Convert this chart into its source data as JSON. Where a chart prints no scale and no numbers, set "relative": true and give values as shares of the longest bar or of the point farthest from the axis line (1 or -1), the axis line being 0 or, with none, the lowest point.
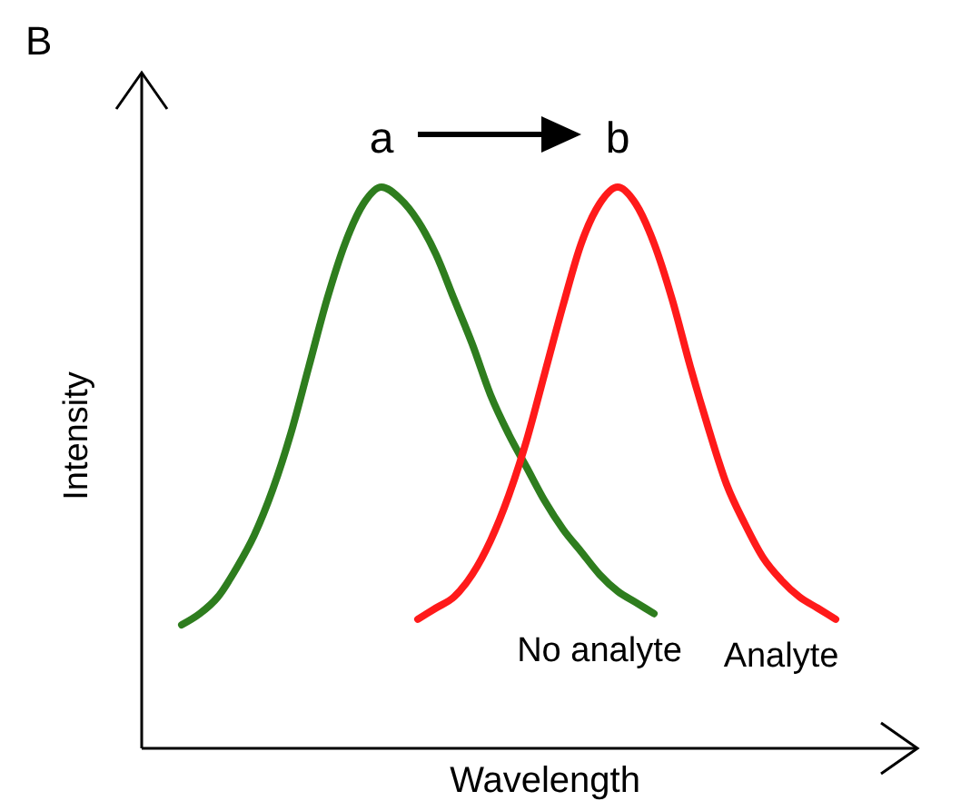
{
  "chart_data": {
    "type": "line",
    "title": "B",
    "xlabel": "Wavelength",
    "ylabel": "Intensity",
    "relative": true,
    "line_style": "solid",
    "categories": [
      null,
      null,
      null,
      null,
      null,
      null,
      null,
      null,
      null,
      null,
      null,
      null,
      null,
      null,
      null,
      null,
      null,
      null,
      null,
      null,
      null,
      null,
      null,
      null,
      null,
      null,
      null,
      null,
      null,
      null,
      null,
      null,
      null,
      null,
      null,
      null,
      null
    ],
    "series": [
      {
        "name": "No analyte",
        "color": "#2e7d1e",
        "values": [
          0.22,
          0.24,
          0.27,
          0.32,
          0.38,
          0.46,
          0.56,
          0.68,
          0.8,
          0.9,
          0.97,
          1,
          0.98,
          0.94,
          0.88,
          0.8,
          0.72,
          0.63,
          0.56,
          0.5,
          0.44,
          0.39,
          0.35,
          0.31,
          0.28,
          0.26,
          0.24,
          null,
          null,
          null,
          null,
          null,
          null,
          null,
          null,
          null,
          null
        ]
      },
      {
        "name": "Analyte",
        "color": "#ff1a1a",
        "values": [
          null,
          null,
          null,
          null,
          null,
          null,
          null,
          null,
          null,
          null,
          null,
          null,
          null,
          0.23,
          0.25,
          0.27,
          0.31,
          0.37,
          0.45,
          0.55,
          0.67,
          0.79,
          0.9,
          0.97,
          1,
          0.97,
          0.9,
          0.8,
          0.68,
          0.57,
          0.47,
          0.4,
          0.34,
          0.3,
          0.27,
          0.25,
          0.23
        ]
      }
    ],
    "annotations": [
      "a",
      "b"
    ]
  }
}
